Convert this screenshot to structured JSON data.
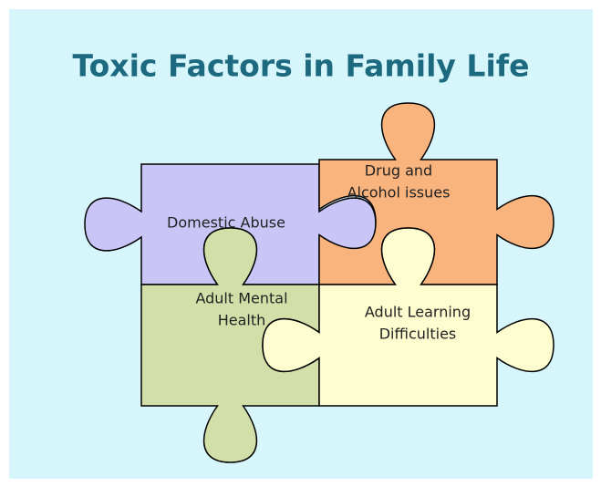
{
  "title": "Toxic Factors in Family Life",
  "pieces": [
    {
      "lines": [
        "Domestic Abuse"
      ]
    },
    {
      "lines": [
        "Drug and",
        "Alcohol issues"
      ]
    },
    {
      "lines": [
        "Adult Mental",
        "Health"
      ]
    },
    {
      "lines": [
        "Adult Learning",
        "Difficulties"
      ]
    }
  ]
}
